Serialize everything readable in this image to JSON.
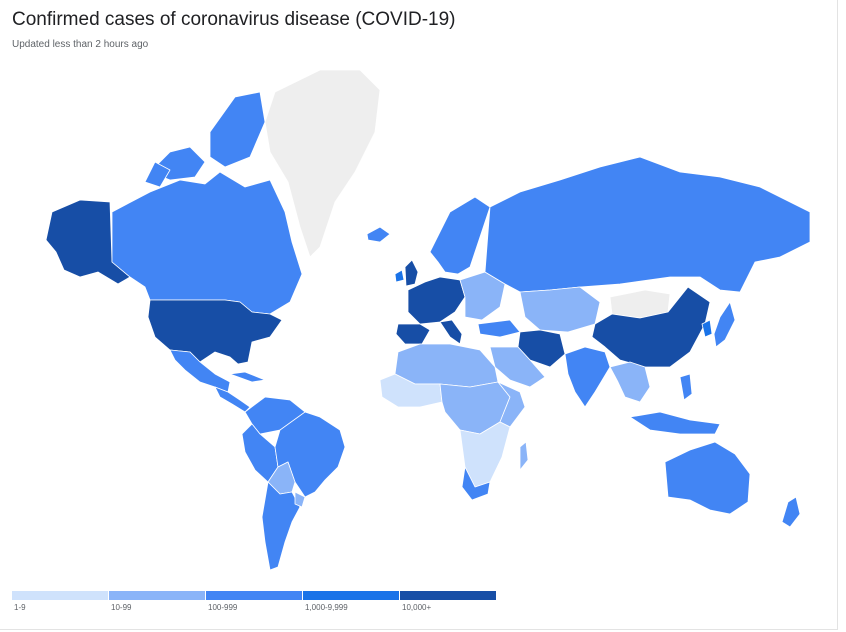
{
  "header": {
    "title": "Confirmed cases of coronavirus disease (COVID-19)",
    "subtitle": "Updated less than 2 hours ago"
  },
  "legend": {
    "bins": [
      {
        "label": "1-9",
        "color": "#cfe2fc"
      },
      {
        "label": "10-99",
        "color": "#8ab4f8"
      },
      {
        "label": "100-999",
        "color": "#4285f4"
      },
      {
        "label": "1,000-9,999",
        "color": "#1a73e8"
      },
      {
        "label": "10,000+",
        "color": "#174ea6"
      }
    ]
  },
  "colors": {
    "no_data": "#eeeeee",
    "border": "#ffffff"
  }
}
